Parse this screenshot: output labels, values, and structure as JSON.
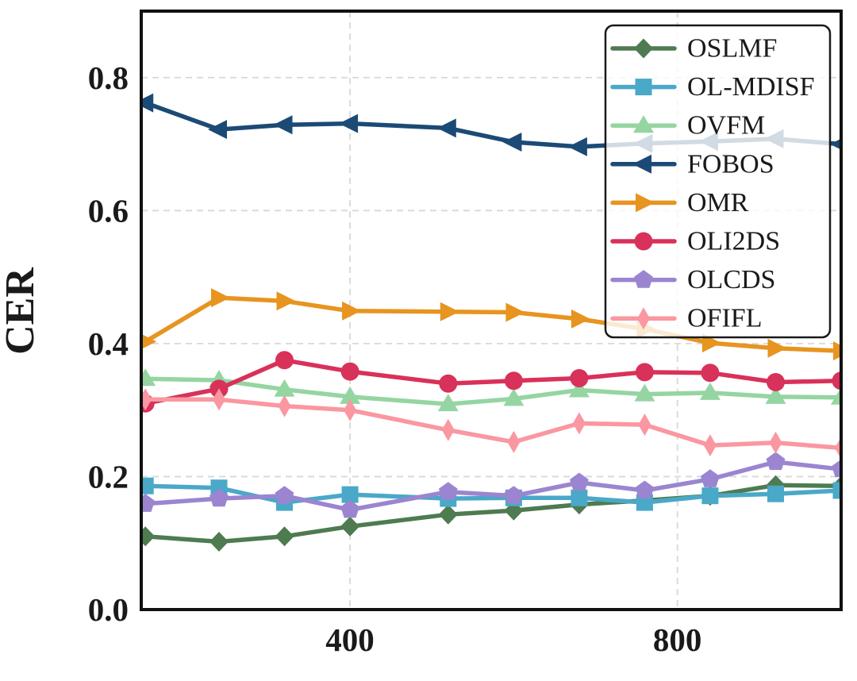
{
  "figure": {
    "background": "#ffffff",
    "text_color": "#1a1a1a"
  },
  "chart_data": {
    "type": "line",
    "title": "",
    "xlabel": "",
    "ylabel": "CER",
    "xlim": [
      145,
      1000
    ],
    "ylim": [
      0,
      0.9
    ],
    "grid": {
      "on": true,
      "style": "dashed",
      "color": "#d8d8d8"
    },
    "xticks": [
      {
        "value": 400,
        "label": "400"
      },
      {
        "value": 800,
        "label": "800"
      }
    ],
    "yticks": [
      {
        "value": 0.0,
        "label": "0.0"
      },
      {
        "value": 0.2,
        "label": "0.2"
      },
      {
        "value": 0.4,
        "label": "0.4"
      },
      {
        "value": 0.6,
        "label": "0.6"
      },
      {
        "value": 0.8,
        "label": "0.8"
      }
    ],
    "x": [
      150,
      240,
      320,
      400,
      520,
      600,
      680,
      760,
      840,
      920,
      1000
    ],
    "series": [
      {
        "name": "OSLMF",
        "color": "#4e7b50",
        "marker": "diamond",
        "values": [
          0.11,
          0.102,
          0.11,
          0.125,
          0.143,
          0.149,
          0.158,
          0.164,
          0.171,
          0.187,
          0.186
        ]
      },
      {
        "name": "OL-MDISF",
        "color": "#4aa8c8",
        "marker": "square",
        "values": [
          0.186,
          0.183,
          0.161,
          0.173,
          0.167,
          0.168,
          0.168,
          0.161,
          0.171,
          0.174,
          0.179
        ]
      },
      {
        "name": "OVFM",
        "color": "#95d5a2",
        "marker": "triangle-up",
        "values": [
          0.347,
          0.345,
          0.331,
          0.32,
          0.309,
          0.317,
          0.33,
          0.324,
          0.326,
          0.32,
          0.319
        ]
      },
      {
        "name": "FOBOS",
        "color": "#1c4a76",
        "marker": "triangle-left",
        "values": [
          0.762,
          0.722,
          0.729,
          0.731,
          0.724,
          0.703,
          0.696,
          0.701,
          0.704,
          0.708,
          0.7
        ]
      },
      {
        "name": "OMR",
        "color": "#e79420",
        "marker": "triangle-right",
        "values": [
          0.403,
          0.469,
          0.464,
          0.449,
          0.448,
          0.447,
          0.437,
          0.422,
          0.401,
          0.393,
          0.389
        ]
      },
      {
        "name": "OLI2DS",
        "color": "#d8315a",
        "marker": "circle",
        "values": [
          0.31,
          0.332,
          0.375,
          0.358,
          0.34,
          0.344,
          0.348,
          0.357,
          0.356,
          0.342,
          0.344
        ]
      },
      {
        "name": "OLCDS",
        "color": "#9b85d0",
        "marker": "pentagon",
        "values": [
          0.159,
          0.167,
          0.171,
          0.15,
          0.177,
          0.171,
          0.191,
          0.179,
          0.196,
          0.222,
          0.211
        ]
      },
      {
        "name": "OFIFL",
        "color": "#fa97a0",
        "marker": "thin-diamond",
        "values": [
          0.316,
          0.316,
          0.306,
          0.3,
          0.27,
          0.252,
          0.28,
          0.278,
          0.247,
          0.251,
          0.243
        ]
      }
    ],
    "legend": {
      "position": "upper-right",
      "border_color": "#1a1a1a",
      "background": "rgba(255,255,255,0.8)",
      "labels": [
        "OSLMF",
        "OL-MDISF",
        "OVFM",
        "FOBOS",
        "OMR",
        "OLI2DS",
        "OLCDS",
        "OFIFL"
      ]
    }
  }
}
